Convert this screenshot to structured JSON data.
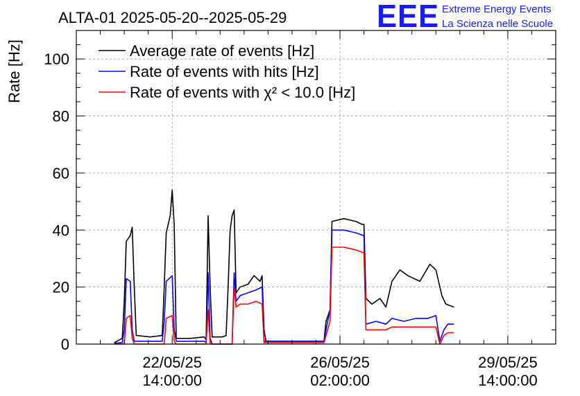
{
  "header": {
    "title": "ALTA-01 2025-05-20--2025-05-29",
    "logo_text": "EEE",
    "brand_line1": "Extreme Energy Events",
    "brand_line2": "La Scienza nelle Scuole",
    "brand_color": "#1a1aff"
  },
  "chart_data": {
    "type": "line",
    "ylabel": "Rate [Hz]",
    "xlabel": "",
    "ylim": [
      0,
      110
    ],
    "yticks": [
      0,
      20,
      40,
      60,
      80,
      100
    ],
    "xlim": [
      "2025-05-20 14:00",
      "2025-05-30 14:00"
    ],
    "xticks": [
      {
        "date": "22/05/25",
        "time": "14:00:00"
      },
      {
        "date": "26/05/25",
        "time": "02:00:00"
      },
      {
        "date": "29/05/25",
        "time": "14:00:00"
      }
    ],
    "grid": true,
    "legend_position": "top-left",
    "series": [
      {
        "name": "Average rate of events [Hz]",
        "color": "#000000",
        "points": [
          [
            "2025-05-21 09:00",
            0.5
          ],
          [
            "2025-05-21 13:00",
            2
          ],
          [
            "2025-05-21 14:00",
            15
          ],
          [
            "2025-05-21 15:00",
            36
          ],
          [
            "2025-05-21 17:00",
            38
          ],
          [
            "2025-05-21 18:00",
            41
          ],
          [
            "2025-05-21 19:00",
            20
          ],
          [
            "2025-05-21 20:00",
            3
          ],
          [
            "2025-05-22 03:00",
            2.5
          ],
          [
            "2025-05-22 09:00",
            3
          ],
          [
            "2025-05-22 10:00",
            20
          ],
          [
            "2025-05-22 11:00",
            39
          ],
          [
            "2025-05-22 13:00",
            45
          ],
          [
            "2025-05-22 14:00",
            54
          ],
          [
            "2025-05-22 15:00",
            42
          ],
          [
            "2025-05-22 16:00",
            2
          ],
          [
            "2025-05-22 23:00",
            2
          ],
          [
            "2025-05-23 06:00",
            2.5
          ],
          [
            "2025-05-23 07:00",
            1.5
          ],
          [
            "2025-05-23 08:00",
            45
          ],
          [
            "2025-05-23 09:00",
            20
          ],
          [
            "2025-05-23 10:00",
            2.5
          ],
          [
            "2025-05-23 15:00",
            2.5
          ],
          [
            "2025-05-23 17:00",
            3
          ],
          [
            "2025-05-23 18:00",
            20
          ],
          [
            "2025-05-23 19:00",
            40
          ],
          [
            "2025-05-23 20:00",
            45
          ],
          [
            "2025-05-23 21:00",
            47
          ],
          [
            "2025-05-23 22:00",
            18
          ],
          [
            "2025-05-24 00:00",
            20
          ],
          [
            "2025-05-24 04:00",
            21
          ],
          [
            "2025-05-24 07:00",
            24
          ],
          [
            "2025-05-24 10:00",
            22
          ],
          [
            "2025-05-24 11:00",
            24
          ],
          [
            "2025-05-24 12:00",
            5
          ],
          [
            "2025-05-24 13:00",
            1
          ],
          [
            "2025-05-25 18:00",
            1
          ],
          [
            "2025-05-25 19:00",
            8
          ],
          [
            "2025-05-25 21:00",
            12
          ],
          [
            "2025-05-25 22:00",
            43
          ],
          [
            "2025-05-26 04:00",
            44
          ],
          [
            "2025-05-26 10:00",
            43
          ],
          [
            "2025-05-26 13:00",
            42
          ],
          [
            "2025-05-26 14:00",
            42
          ],
          [
            "2025-05-26 15:00",
            16
          ],
          [
            "2025-05-26 18:00",
            14
          ],
          [
            "2025-05-26 22:00",
            16
          ],
          [
            "2025-05-27 01:00",
            13
          ],
          [
            "2025-05-27 04:00",
            22
          ],
          [
            "2025-05-27 08:00",
            26
          ],
          [
            "2025-05-27 12:00",
            24
          ],
          [
            "2025-05-27 18:00",
            22
          ],
          [
            "2025-05-27 23:00",
            28
          ],
          [
            "2025-05-28 02:00",
            26
          ],
          [
            "2025-05-28 05:00",
            17
          ],
          [
            "2025-05-28 07:00",
            14
          ],
          [
            "2025-05-28 11:00",
            13
          ]
        ]
      },
      {
        "name": "Rate of events with hits [Hz]",
        "color": "#0000ff",
        "points": [
          [
            "2025-05-21 09:00",
            0.3
          ],
          [
            "2025-05-21 13:00",
            0.5
          ],
          [
            "2025-05-21 14:00",
            5
          ],
          [
            "2025-05-21 15:00",
            23
          ],
          [
            "2025-05-21 17:00",
            22
          ],
          [
            "2025-05-21 18:00",
            5
          ],
          [
            "2025-05-21 19:00",
            1
          ],
          [
            "2025-05-22 09:00",
            1
          ],
          [
            "2025-05-22 10:00",
            8
          ],
          [
            "2025-05-22 11:00",
            22
          ],
          [
            "2025-05-22 14:00",
            24
          ],
          [
            "2025-05-22 15:00",
            5
          ],
          [
            "2025-05-22 16:00",
            1
          ],
          [
            "2025-05-23 06:00",
            1
          ],
          [
            "2025-05-23 07:00",
            0.5
          ],
          [
            "2025-05-23 08:00",
            25
          ],
          [
            "2025-05-23 09:00",
            2
          ],
          [
            "2025-05-23 10:00",
            0
          ],
          [
            "2025-05-23 20:00",
            0
          ],
          [
            "2025-05-23 21:00",
            25
          ],
          [
            "2025-05-23 22:00",
            15
          ],
          [
            "2025-05-24 00:00",
            17
          ],
          [
            "2025-05-24 04:00",
            18
          ],
          [
            "2025-05-24 08:00",
            19
          ],
          [
            "2025-05-24 11:00",
            20
          ],
          [
            "2025-05-24 12:00",
            1
          ],
          [
            "2025-05-25 18:00",
            1
          ],
          [
            "2025-05-25 19:00",
            5
          ],
          [
            "2025-05-25 21:00",
            12
          ],
          [
            "2025-05-25 22:00",
            40
          ],
          [
            "2025-05-26 04:00",
            40
          ],
          [
            "2025-05-26 10:00",
            39
          ],
          [
            "2025-05-26 14:00",
            38
          ],
          [
            "2025-05-26 15:00",
            7
          ],
          [
            "2025-05-26 20:00",
            8
          ],
          [
            "2025-05-27 01:00",
            7
          ],
          [
            "2025-05-27 04:00",
            9
          ],
          [
            "2025-05-27 10:00",
            8
          ],
          [
            "2025-05-27 16:00",
            9
          ],
          [
            "2025-05-27 22:00",
            9
          ],
          [
            "2025-05-28 02:00",
            10
          ],
          [
            "2025-05-28 04:00",
            1
          ],
          [
            "2025-05-28 06:00",
            5
          ],
          [
            "2025-05-28 08:00",
            7
          ],
          [
            "2025-05-28 11:00",
            7
          ]
        ]
      },
      {
        "name": "Rate of events with χ² < 10.0 [Hz]",
        "color": "#ff0000",
        "points": [
          [
            "2025-05-21 09:00",
            0
          ],
          [
            "2025-05-21 14:00",
            0
          ],
          [
            "2025-05-21 15:00",
            9
          ],
          [
            "2025-05-21 17:00",
            10
          ],
          [
            "2025-05-21 18:00",
            2
          ],
          [
            "2025-05-21 19:00",
            0
          ],
          [
            "2025-05-22 10:00",
            0
          ],
          [
            "2025-05-22 11:00",
            9
          ],
          [
            "2025-05-22 14:00",
            10
          ],
          [
            "2025-05-22 15:00",
            1
          ],
          [
            "2025-05-22 16:00",
            0
          ],
          [
            "2025-05-23 07:00",
            0
          ],
          [
            "2025-05-23 08:00",
            12
          ],
          [
            "2025-05-23 09:00",
            0
          ],
          [
            "2025-05-23 20:00",
            0
          ],
          [
            "2025-05-23 21:00",
            20
          ],
          [
            "2025-05-23 22:00",
            13
          ],
          [
            "2025-05-24 00:00",
            14
          ],
          [
            "2025-05-24 04:00",
            14
          ],
          [
            "2025-05-24 08:00",
            15
          ],
          [
            "2025-05-24 11:00",
            14
          ],
          [
            "2025-05-24 12:00",
            0.5
          ],
          [
            "2025-05-25 18:00",
            0.5
          ],
          [
            "2025-05-25 19:00",
            3
          ],
          [
            "2025-05-25 21:00",
            8
          ],
          [
            "2025-05-25 22:00",
            34
          ],
          [
            "2025-05-26 04:00",
            34
          ],
          [
            "2025-05-26 10:00",
            33
          ],
          [
            "2025-05-26 14:00",
            32
          ],
          [
            "2025-05-26 15:00",
            5
          ],
          [
            "2025-05-26 20:00",
            5
          ],
          [
            "2025-05-27 01:00",
            5
          ],
          [
            "2025-05-27 04:00",
            6
          ],
          [
            "2025-05-27 10:00",
            6
          ],
          [
            "2025-05-27 16:00",
            6
          ],
          [
            "2025-05-27 22:00",
            6
          ],
          [
            "2025-05-28 02:00",
            6
          ],
          [
            "2025-05-28 04:00",
            0
          ],
          [
            "2025-05-28 06:00",
            3
          ],
          [
            "2025-05-28 08:00",
            4
          ],
          [
            "2025-05-28 11:00",
            4
          ]
        ]
      }
    ]
  }
}
